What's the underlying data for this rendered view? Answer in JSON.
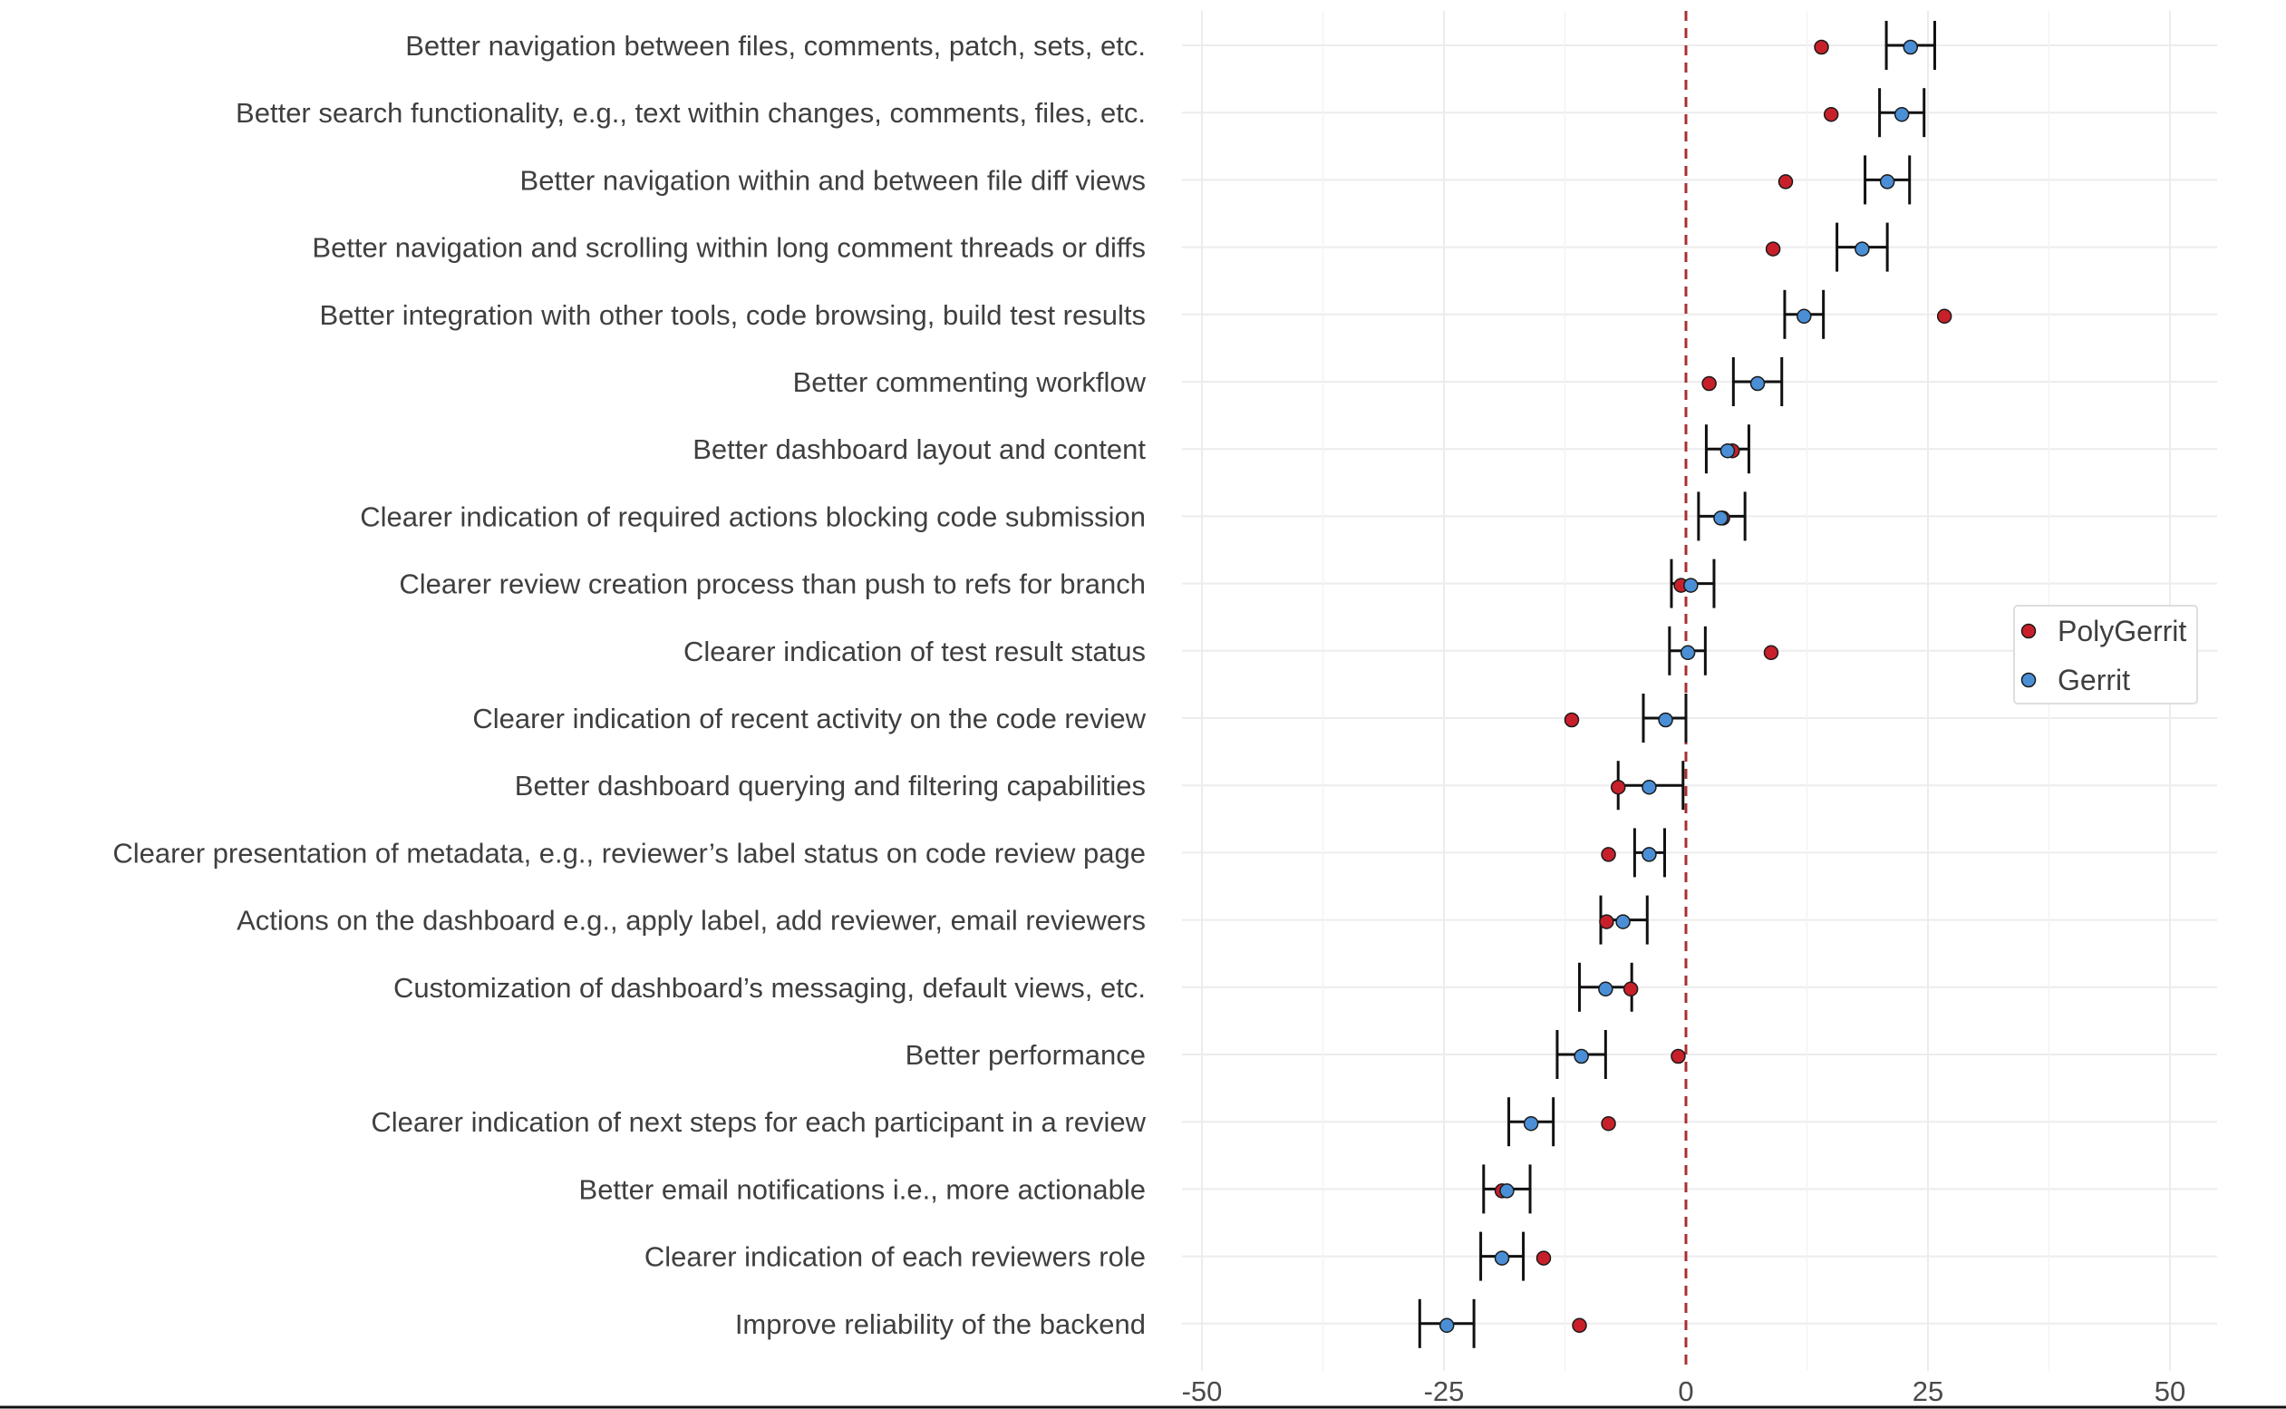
{
  "chart_data": {
    "type": "scatter",
    "title": "",
    "xlabel": "",
    "ylabel": "",
    "xlim": [
      -52,
      55
    ],
    "x_ticks": [
      -50,
      -25,
      0,
      25,
      50
    ],
    "x_tick_labels": [
      "-50",
      "-25",
      "0",
      "25",
      "50"
    ],
    "reference_line": {
      "x": 0,
      "style": "dashed",
      "color": "#a8302f"
    },
    "grid": true,
    "legend_position": "right",
    "categories": [
      "Better navigation between files, comments, patch, sets, etc.",
      "Better search functionality, e.g., text within changes, comments, files, etc.",
      "Better navigation within and between file diff views",
      "Better navigation and scrolling within long comment threads or diffs",
      "Better integration with other tools, code browsing, build test results",
      "Better commenting workflow",
      "Better dashboard layout and content",
      "Clearer indication of required actions blocking code submission",
      "Clearer review creation process than push to refs for branch",
      "Clearer indication of test result status",
      "Clearer indication of recent activity on the code review",
      "Better dashboard querying and filtering capabilities",
      "Clearer presentation of metadata, e.g., reviewer’s label status on code review page",
      "Actions on the dashboard e.g., apply label, add reviewer, email reviewers",
      "Customization of dashboard’s messaging, default views, etc.",
      "Better performance",
      "Clearer indication of next steps for each participant in a review",
      "Better email notifications i.e., more actionable",
      "Clearer indication of each reviewers role",
      "Improve reliability of the backend"
    ],
    "series": [
      {
        "name": "PolyGerrit",
        "color": "#c8202a",
        "values": [
          14,
          15,
          10.3,
          9,
          26.7,
          2.4,
          4.8,
          3.8,
          -0.5,
          8.8,
          -11.8,
          -7,
          -8,
          -8.2,
          -5.7,
          -0.8,
          -8,
          -19,
          -14.7,
          -11
        ]
      },
      {
        "name": "Gerrit",
        "color": "#4a8fd6",
        "values": [
          23.2,
          22.3,
          20.8,
          18.2,
          12.2,
          7.4,
          4.3,
          3.6,
          0.5,
          0.2,
          -2.1,
          -3.8,
          -3.8,
          -6.5,
          -8.3,
          -10.8,
          -16,
          -18.5,
          -19,
          -24.7
        ],
        "error_low": [
          20.7,
          20.0,
          18.5,
          15.6,
          10.2,
          4.9,
          2.1,
          1.3,
          -1.5,
          -1.7,
          -4.4,
          -7.0,
          -5.3,
          -8.8,
          -11.0,
          -13.3,
          -18.3,
          -20.9,
          -21.2,
          -27.5
        ],
        "error_high": [
          25.7,
          24.6,
          23.1,
          20.8,
          14.2,
          9.9,
          6.5,
          6.1,
          2.9,
          2.0,
          0.0,
          -0.3,
          -2.2,
          -4.0,
          -5.6,
          -8.3,
          -13.7,
          -16.1,
          -16.8,
          -21.9
        ]
      }
    ]
  }
}
